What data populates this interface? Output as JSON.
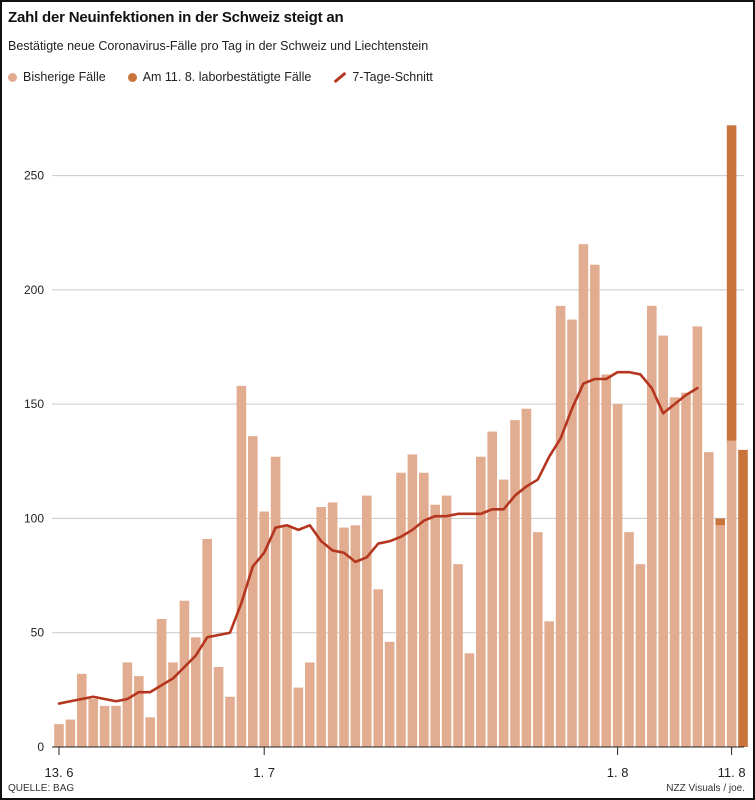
{
  "title": "Zahl der Neuinfektionen in der Schweiz steigt an",
  "subtitle": "Bestätigte neue Coronavirus-Fälle pro Tag in der Schweiz und Liechtenstein",
  "legend": {
    "bisherige": "Bisherige Fälle",
    "laborbestaetigt": "Am 11. 8. laborbestätigte Fälle",
    "schnitt": "7-Tage-Schnitt"
  },
  "colors": {
    "bisherige": "#e2ac90",
    "laborbestaetigt": "#c8743b",
    "schnitt": "#b5361e",
    "grid": "#c9c9c9"
  },
  "source": "QUELLE: BAG",
  "credit": "NZZ Visuals / joe.",
  "chart_data": {
    "type": "bar",
    "title": "Zahl der Neuinfektionen in der Schweiz steigt an",
    "ylim": [
      0,
      280
    ],
    "y_ticks": [
      0,
      50,
      100,
      150,
      200,
      250
    ],
    "x_tick_labels": [
      {
        "index": 0,
        "label": "13. 6"
      },
      {
        "index": 18,
        "label": "1. 7"
      },
      {
        "index": 49,
        "label": "1. 8"
      },
      {
        "index": 59,
        "label": "11. 8"
      }
    ],
    "series": [
      {
        "name": "Bisherige Fälle",
        "values": [
          10,
          12,
          32,
          21,
          18,
          18,
          37,
          31,
          13,
          56,
          37,
          64,
          48,
          91,
          35,
          22,
          158,
          136,
          103,
          127,
          97,
          26,
          37,
          105,
          107,
          96,
          97,
          110,
          69,
          46,
          120,
          128,
          120,
          106,
          110,
          80,
          41,
          127,
          138,
          117,
          143,
          148,
          94,
          55,
          193,
          187,
          220,
          211,
          163,
          150,
          94,
          80,
          193,
          180,
          153,
          155,
          184,
          129,
          97,
          134,
          0
        ]
      },
      {
        "name": "Am 11. 8. laborbestätigte Fälle",
        "values": [
          0,
          0,
          0,
          0,
          0,
          0,
          0,
          0,
          0,
          0,
          0,
          0,
          0,
          0,
          0,
          0,
          0,
          0,
          0,
          0,
          0,
          0,
          0,
          0,
          0,
          0,
          0,
          0,
          0,
          0,
          0,
          0,
          0,
          0,
          0,
          0,
          0,
          0,
          0,
          0,
          0,
          0,
          0,
          0,
          0,
          0,
          0,
          0,
          0,
          0,
          0,
          0,
          0,
          0,
          0,
          0,
          0,
          0,
          3,
          138,
          130
        ]
      },
      {
        "name": "7-Tage-Schnitt",
        "type": "line",
        "values": [
          19,
          20,
          21,
          22,
          21,
          20,
          21,
          24,
          24,
          27,
          30,
          35,
          40,
          48,
          49,
          50,
          63,
          79,
          85,
          96,
          97,
          95,
          97,
          90,
          86,
          85,
          81,
          83,
          89,
          90,
          92,
          95,
          99,
          101,
          101,
          102,
          102,
          102,
          104,
          104,
          110,
          114,
          117,
          127,
          135,
          148,
          159,
          161,
          161,
          164,
          164,
          163,
          157,
          146,
          150,
          154,
          157
        ]
      }
    ]
  }
}
